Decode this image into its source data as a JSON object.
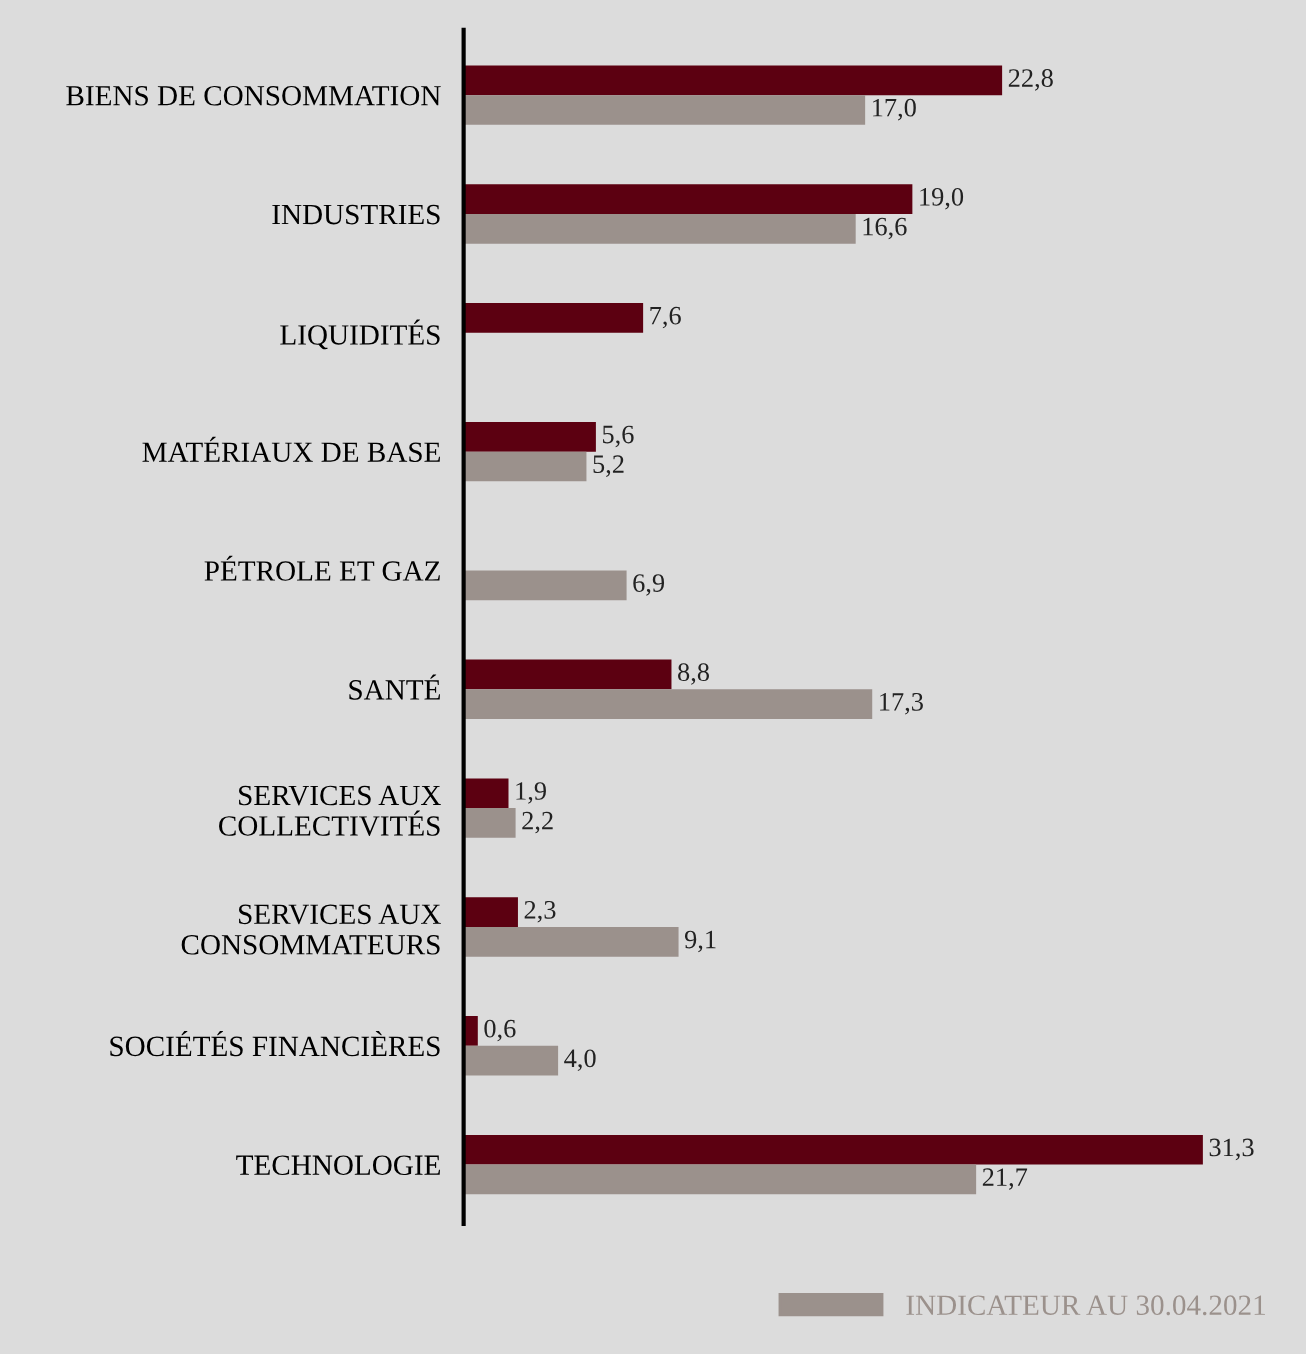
{
  "chart_data": {
    "type": "bar",
    "orientation": "horizontal",
    "categories": [
      "BIENS DE CONSOMMATION",
      "INDUSTRIES",
      "LIQUIDITÉS",
      "MATÉRIAUX DE BASE",
      "PÉTROLE ET GAZ",
      "SANTÉ",
      "SERVICES AUX\nCOLLECTIVITÉS",
      "SERVICES AUX\nCONSOMMATEURS",
      "SOCIÉTÉS FINANCIÈRES",
      "TECHNOLOGIE"
    ],
    "series": [
      {
        "color": "#5c0011",
        "values": [
          22.8,
          19.0,
          7.6,
          5.6,
          null,
          8.8,
          1.9,
          2.3,
          0.6,
          31.3
        ],
        "value_labels": [
          "22,8",
          "19,0",
          "7,6",
          "5,6",
          null,
          "8,8",
          "1,9",
          "2,3",
          "0,6",
          "31,3"
        ]
      },
      {
        "name": "INDICATEUR AU 30.04.2021",
        "color": "#9b918c",
        "values": [
          17.0,
          16.6,
          null,
          5.2,
          6.9,
          17.3,
          2.2,
          9.1,
          4.0,
          21.7
        ],
        "value_labels": [
          "17,0",
          "16,6",
          null,
          "5,2",
          "6,9",
          "17,3",
          "2,2",
          "9,1",
          "4,0",
          "21,7"
        ]
      }
    ],
    "legend": "bottom",
    "grid": false
  }
}
